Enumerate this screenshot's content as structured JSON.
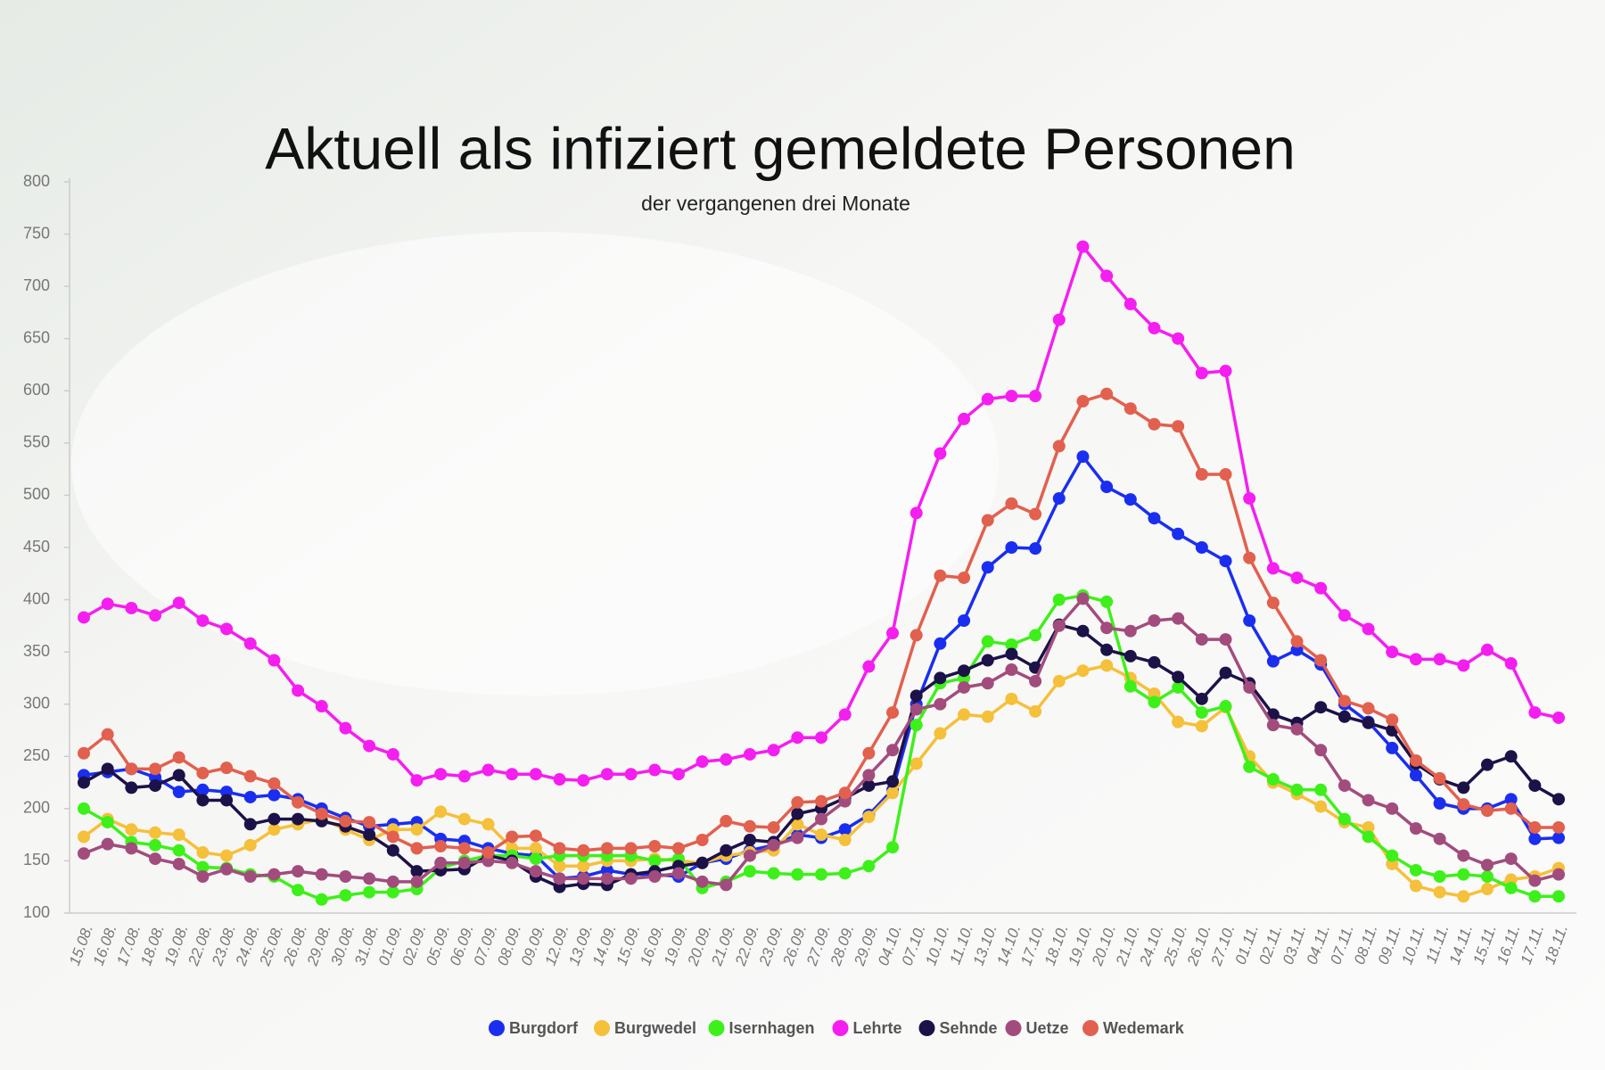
{
  "chart_data": {
    "type": "line",
    "title": "Aktuell als infiziert gemeldete Personen",
    "subtitle": "der vergangenen drei Monate",
    "categories": [
      "15.08.",
      "16.08.",
      "17.08.",
      "18.08.",
      "19.08.",
      "22.08.",
      "23.08.",
      "24.08.",
      "25.08.",
      "26.08.",
      "29.08.",
      "30.08.",
      "31.08.",
      "01.09.",
      "02.09.",
      "05.09.",
      "06.09.",
      "07.09.",
      "08.09.",
      "09.09.",
      "12.09.",
      "13.09.",
      "14.09.",
      "15.09.",
      "16.09.",
      "19.09.",
      "20.09.",
      "21.09.",
      "22.09.",
      "23.09.",
      "26.09.",
      "27.09.",
      "28.09.",
      "29.09.",
      "04.10.",
      "07.10.",
      "10.10.",
      "11.10.",
      "13.10.",
      "14.10.",
      "17.10.",
      "18.10.",
      "19.10.",
      "20.10.",
      "21.10.",
      "24.10.",
      "25.10.",
      "26.10.",
      "27.10.",
      "01.11.",
      "02.11.",
      "03.11.",
      "04.11.",
      "07.11.",
      "08.11.",
      "09.11.",
      "10.11.",
      "11.11.",
      "14.11.",
      "15.11.",
      "16.11.",
      "17.11.",
      "18.11."
    ],
    "series": [
      {
        "name": "Burgdorf",
        "color": "#1a2ef0",
        "values": [
          232,
          235,
          238,
          230,
          216,
          218,
          216,
          211,
          213,
          209,
          200,
          191,
          183,
          185,
          187,
          171,
          169,
          162,
          157,
          155,
          133,
          135,
          141,
          137,
          137,
          135,
          148,
          152,
          160,
          165,
          175,
          172,
          180,
          194,
          218,
          300,
          358,
          380,
          431,
          450,
          449,
          497,
          537,
          508,
          496,
          478,
          463,
          450,
          437,
          380,
          341,
          352,
          338,
          300,
          283,
          258,
          232,
          205,
          200,
          200,
          209,
          171,
          172
        ]
      },
      {
        "name": "Burgwedel",
        "color": "#f5c03a",
        "values": [
          173,
          190,
          180,
          177,
          175,
          158,
          155,
          165,
          180,
          185,
          190,
          180,
          170,
          180,
          180,
          197,
          190,
          185,
          162,
          162,
          145,
          145,
          150,
          150,
          152,
          150,
          148,
          155,
          158,
          160,
          185,
          175,
          170,
          192,
          215,
          243,
          272,
          290,
          288,
          305,
          293,
          322,
          332,
          337,
          325,
          310,
          283,
          279,
          297,
          250,
          225,
          214,
          202,
          187,
          182,
          147,
          126,
          120,
          116,
          123,
          132,
          135,
          143
        ]
      },
      {
        "name": "Isernhagen",
        "color": "#3ef01a",
        "values": [
          200,
          187,
          168,
          165,
          160,
          144,
          143,
          137,
          135,
          122,
          113,
          117,
          120,
          120,
          123,
          143,
          150,
          155,
          155,
          152,
          155,
          155,
          155,
          155,
          150,
          152,
          124,
          130,
          140,
          138,
          137,
          137,
          138,
          145,
          163,
          280,
          320,
          325,
          360,
          357,
          366,
          400,
          404,
          398,
          317,
          302,
          316,
          292,
          298,
          240,
          228,
          218,
          218,
          190,
          173,
          155,
          141,
          135,
          137,
          135,
          124,
          116,
          116
        ]
      },
      {
        "name": "Lehrte",
        "color": "#f51ef0",
        "values": [
          383,
          396,
          392,
          385,
          397,
          380,
          372,
          358,
          342,
          313,
          298,
          277,
          260,
          252,
          227,
          233,
          231,
          237,
          233,
          233,
          228,
          227,
          233,
          233,
          237,
          233,
          245,
          247,
          252,
          256,
          268,
          268,
          290,
          336,
          368,
          483,
          540,
          573,
          592,
          595,
          595,
          668,
          738,
          710,
          683,
          660,
          650,
          617,
          619,
          497,
          430,
          421,
          411,
          385,
          372,
          350,
          343,
          343,
          337,
          352,
          339,
          292,
          287
        ]
      },
      {
        "name": "Sehnde",
        "color": "#1c1248",
        "values": [
          225,
          238,
          220,
          222,
          232,
          208,
          208,
          185,
          190,
          190,
          188,
          183,
          175,
          160,
          140,
          141,
          142,
          155,
          150,
          135,
          125,
          128,
          127,
          137,
          140,
          145,
          148,
          160,
          170,
          168,
          195,
          200,
          210,
          222,
          226,
          308,
          325,
          332,
          342,
          348,
          335,
          376,
          370,
          352,
          346,
          340,
          326,
          305,
          330,
          320,
          290,
          282,
          297,
          288,
          282,
          275,
          243,
          228,
          220,
          242,
          250,
          222,
          209
        ]
      },
      {
        "name": "Uetze",
        "color": "#a24c7e",
        "values": [
          157,
          166,
          162,
          152,
          147,
          135,
          142,
          135,
          137,
          140,
          137,
          135,
          133,
          130,
          130,
          148,
          148,
          150,
          148,
          140,
          133,
          133,
          133,
          133,
          135,
          138,
          130,
          127,
          155,
          165,
          172,
          190,
          207,
          232,
          256,
          295,
          300,
          316,
          320,
          333,
          322,
          375,
          401,
          373,
          370,
          380,
          382,
          362,
          362,
          316,
          280,
          276,
          256,
          222,
          208,
          200,
          181,
          171,
          155,
          146,
          152,
          131,
          137
        ]
      },
      {
        "name": "Wedemark",
        "color": "#e2604e",
        "values": [
          253,
          271,
          238,
          238,
          249,
          234,
          239,
          231,
          224,
          206,
          195,
          188,
          187,
          173,
          162,
          164,
          162,
          158,
          173,
          174,
          162,
          160,
          162,
          162,
          164,
          162,
          170,
          188,
          183,
          182,
          206,
          207,
          215,
          253,
          292,
          366,
          423,
          421,
          476,
          492,
          482,
          547,
          590,
          597,
          583,
          568,
          566,
          520,
          520,
          440,
          397,
          360,
          342,
          303,
          296,
          285,
          246,
          229,
          204,
          198,
          200,
          182,
          182
        ]
      }
    ],
    "ylim": [
      100,
      800
    ],
    "yticks": [
      100,
      150,
      200,
      250,
      300,
      350,
      400,
      450,
      500,
      550,
      600,
      650,
      700,
      750,
      800
    ],
    "grid": false
  }
}
